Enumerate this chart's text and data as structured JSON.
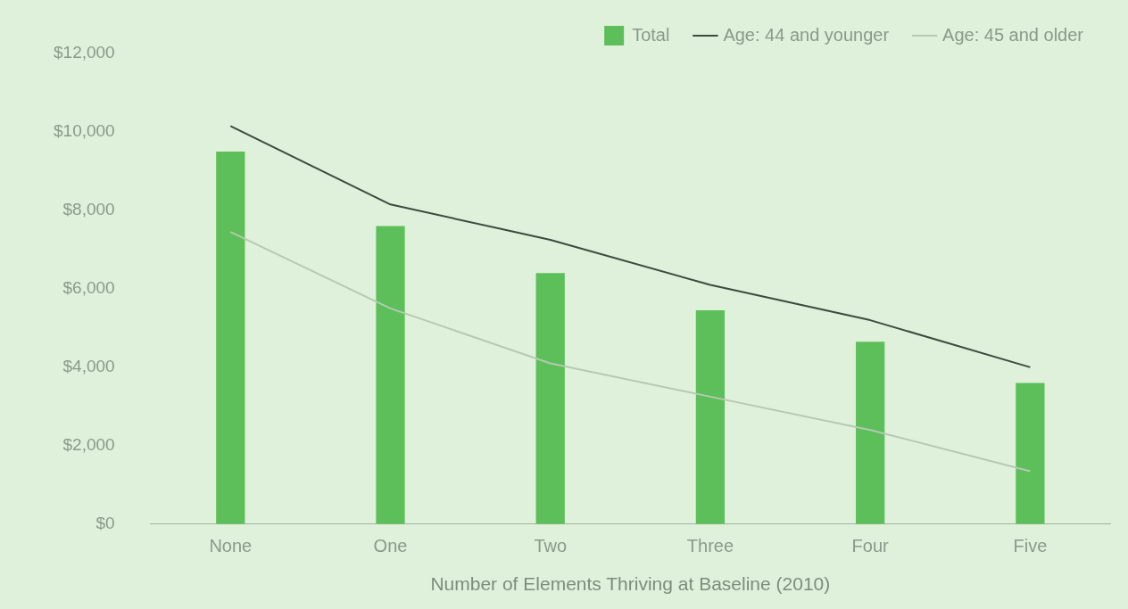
{
  "chart_data": {
    "type": "bar",
    "xlabel": "Number of Elements Thriving at Baseline (2010)",
    "categories": [
      "None",
      "One",
      "Two",
      "Three",
      "Four",
      "Five"
    ],
    "series": [
      {
        "name": "Total",
        "color": "#5cbf5a",
        "values": [
          9500,
          7600,
          6400,
          5450,
          4650,
          3600
        ]
      },
      {
        "name": "Age: 44 and younger",
        "type": "line",
        "color": "#3d4a3d",
        "values": [
          10150,
          8150,
          7250,
          6100,
          5200,
          4000
        ]
      },
      {
        "name": "Age: 45 and older",
        "type": "line",
        "color": "#b5c9b3",
        "values": [
          7450,
          5500,
          4100,
          3250,
          2400,
          1350
        ]
      }
    ],
    "ylim": [
      0,
      12000
    ],
    "yticks": [
      {
        "value": 0,
        "label": "$0"
      },
      {
        "value": 2000,
        "label": "$2,000"
      },
      {
        "value": 4000,
        "label": "$4,000"
      },
      {
        "value": 6000,
        "label": "$6,000"
      },
      {
        "value": 8000,
        "label": "$8,000"
      },
      {
        "value": 10000,
        "label": "$10,000"
      },
      {
        "value": 12000,
        "label": "$12,000"
      }
    ],
    "grid": false,
    "legend": "top",
    "marker": "none"
  }
}
